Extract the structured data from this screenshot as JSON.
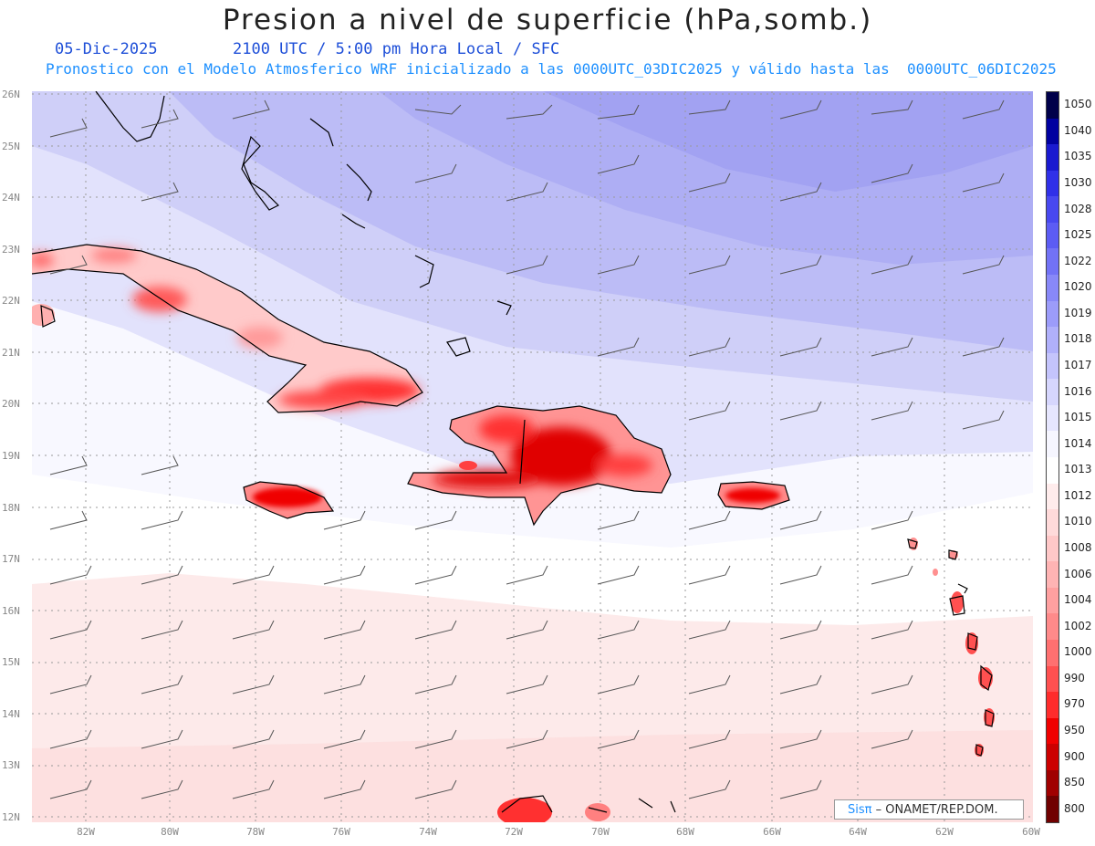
{
  "title": "Presion a nivel de superficie (hPa,somb.)",
  "date": "05-Dic-2025",
  "time_info": "2100 UTC / 5:00 pm Hora Local / SFC",
  "model_info": "Pronostico con el Modelo Atmosferico WRF inicializado a las 0000UTC_03DIC2025 y válido hasta las  0000UTC_06DIC2025",
  "lat_labels": [
    "26N",
    "25N",
    "24N",
    "23N",
    "22N",
    "21N",
    "20N",
    "19N",
    "18N",
    "17N",
    "16N",
    "15N",
    "14N",
    "13N",
    "12N"
  ],
  "lon_labels": [
    "82W",
    "80W",
    "78W",
    "76W",
    "74W",
    "72W",
    "70W",
    "68W",
    "66W",
    "64W",
    "62W",
    "60W"
  ],
  "colorbar": {
    "labels": [
      "1050",
      "1040",
      "1035",
      "1030",
      "1028",
      "1025",
      "1022",
      "1020",
      "1019",
      "1018",
      "1017",
      "1016",
      "1015",
      "1014",
      "1013",
      "1012",
      "1010",
      "1008",
      "1006",
      "1004",
      "1002",
      "1000",
      "990",
      "970",
      "950",
      "900",
      "850",
      "800"
    ],
    "colors": [
      "#00004a",
      "#0000a0",
      "#1a1ad0",
      "#3030e8",
      "#4848f0",
      "#5c5cf4",
      "#7272f6",
      "#8888f8",
      "#9c9cfa",
      "#b0b0fb",
      "#c4c4fc",
      "#d6d6fd",
      "#e6e6fe",
      "#f6f6ff",
      "#ffffff",
      "#ffecec",
      "#ffdada",
      "#ffc8c8",
      "#ffb4b4",
      "#ffa0a0",
      "#ff8a8a",
      "#ff7070",
      "#ff5050",
      "#ff2c2c",
      "#f00000",
      "#cc0000",
      "#a00000",
      "#700000"
    ]
  },
  "credit": {
    "brand": "Sisπ",
    "text": " – ONAMET/REP.DOM."
  }
}
